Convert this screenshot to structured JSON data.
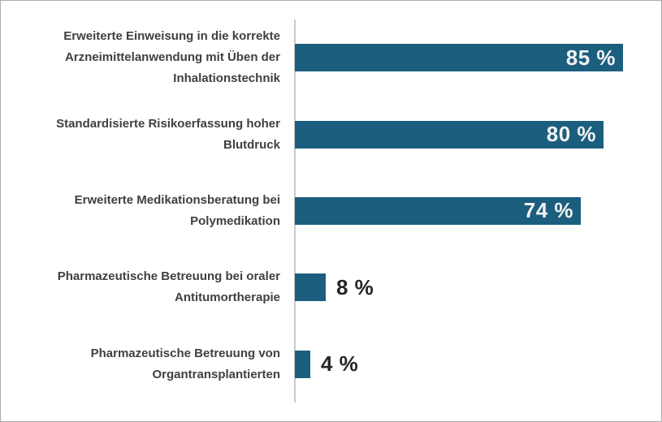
{
  "chart_data": {
    "type": "bar",
    "orientation": "horizontal",
    "title": "",
    "xlabel": "",
    "ylabel": "",
    "xlim": [
      0,
      90
    ],
    "grid": false,
    "legend": false,
    "bar_color": "#1b5e7e",
    "axis_line_color": "#c9c9c9",
    "inside_label_color": "#f2f2f2",
    "outside_label_color": "#262626",
    "category_label_color": "#404040",
    "inside_label_min_value": 20,
    "categories": [
      "Erweiterte Einweisung in die korrekte\nArzneimittelanwendung mit Üben der\nInhalationstechnik",
      "Standardisierte Risikoerfassung hoher\nBlutdruck",
      "Erweiterte Medikationsberatung bei\nPolymedikation",
      "Pharmazeutische Betreuung bei oraler\nAntitumortherapie",
      "Pharmazeutische Betreuung von\nOrgantransplantierten"
    ],
    "values": [
      85,
      80,
      74,
      8,
      4
    ],
    "value_labels": [
      "85 %",
      "80 %",
      "74 %",
      "8 %",
      "4 %"
    ]
  }
}
